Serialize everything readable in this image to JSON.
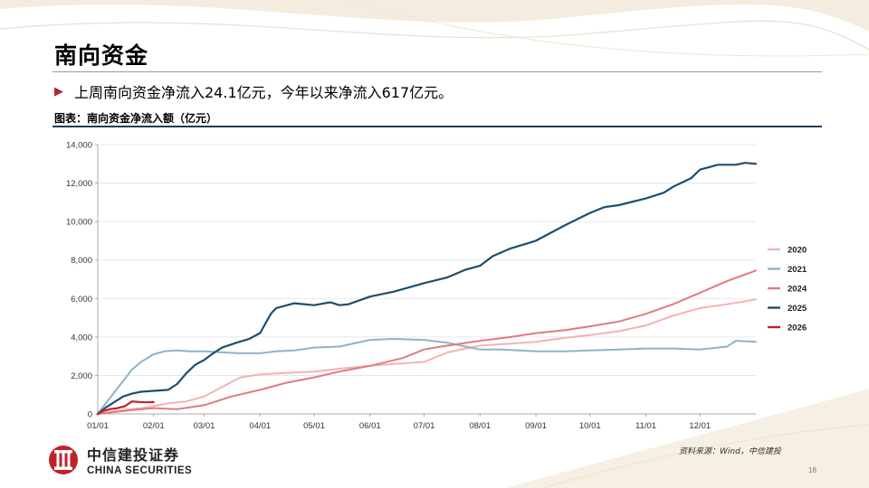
{
  "page": {
    "title": "南向资金",
    "bullet": "上周南向资金净流入24.1亿元，今年以来净流入617亿元。",
    "caption": "图表：南向资金净流入额（亿元）",
    "source": "资料来源：Wind，中信建投",
    "page_number": "18",
    "logo": {
      "name_cn": "中信建投证券",
      "name_en": "CHINA SECURITIES"
    }
  },
  "chart_data": {
    "type": "line",
    "title": "",
    "xlabel": "",
    "ylabel": "",
    "x_ticks": [
      "01/01",
      "02/01",
      "03/01",
      "04/01",
      "05/01",
      "06/01",
      "07/01",
      "08/01",
      "09/01",
      "10/01",
      "11/01",
      "12/01"
    ],
    "x_tick_days": [
      1,
      32,
      60,
      91,
      121,
      152,
      182,
      213,
      244,
      274,
      305,
      335
    ],
    "xlim": [
      1,
      366
    ],
    "ylim": [
      0,
      14000
    ],
    "y_ticks": [
      0,
      2000,
      4000,
      6000,
      8000,
      10000,
      12000,
      14000
    ],
    "y_tick_labels": [
      "0",
      "2,000",
      "4,000",
      "6,000",
      "8,000",
      "10,000",
      "12,000",
      "14,000"
    ],
    "grid": true,
    "legend_position": "right",
    "series": [
      {
        "name": "2020",
        "color": "#f2b3b3",
        "width": 2,
        "x": [
          1,
          15,
          25,
          32,
          40,
          50,
          60,
          70,
          80,
          91,
          100,
          110,
          121,
          135,
          152,
          165,
          182,
          195,
          213,
          230,
          244,
          260,
          274,
          290,
          305,
          320,
          335,
          350,
          366
        ],
        "y": [
          0,
          200,
          300,
          400,
          550,
          650,
          900,
          1400,
          1900,
          2050,
          2100,
          2150,
          2200,
          2350,
          2500,
          2600,
          2700,
          3200,
          3550,
          3650,
          3750,
          3950,
          4100,
          4300,
          4600,
          5100,
          5500,
          5700,
          5950
        ]
      },
      {
        "name": "2021",
        "color": "#8fb2c6",
        "width": 2,
        "x": [
          1,
          5,
          10,
          15,
          20,
          25,
          32,
          38,
          45,
          52,
          60,
          70,
          80,
          91,
          100,
          110,
          121,
          135,
          152,
          165,
          182,
          195,
          205,
          213,
          225,
          244,
          260,
          274,
          290,
          305,
          320,
          335,
          350,
          355,
          366
        ],
        "y": [
          0,
          500,
          1100,
          1700,
          2300,
          2700,
          3100,
          3250,
          3300,
          3250,
          3250,
          3200,
          3150,
          3150,
          3250,
          3300,
          3450,
          3500,
          3850,
          3900,
          3850,
          3700,
          3500,
          3350,
          3350,
          3250,
          3250,
          3300,
          3350,
          3400,
          3400,
          3350,
          3500,
          3800,
          3750
        ]
      },
      {
        "name": "2024",
        "color": "#e07b80",
        "width": 2,
        "x": [
          1,
          20,
          32,
          45,
          60,
          75,
          91,
          105,
          121,
          135,
          152,
          170,
          182,
          195,
          213,
          230,
          244,
          260,
          274,
          290,
          305,
          320,
          335,
          350,
          366
        ],
        "y": [
          0,
          200,
          300,
          250,
          450,
          900,
          1250,
          1600,
          1900,
          2200,
          2500,
          2900,
          3350,
          3550,
          3800,
          4000,
          4200,
          4350,
          4550,
          4800,
          5200,
          5700,
          6300,
          6900,
          7450
        ]
      },
      {
        "name": "2025",
        "color": "#1d4e6e",
        "width": 2.2,
        "x": [
          1,
          5,
          10,
          15,
          20,
          25,
          32,
          40,
          45,
          50,
          55,
          60,
          65,
          70,
          78,
          85,
          91,
          97,
          100,
          110,
          121,
          130,
          135,
          140,
          152,
          165,
          182,
          195,
          205,
          213,
          220,
          230,
          244,
          250,
          260,
          274,
          282,
          290,
          305,
          315,
          320,
          330,
          335,
          345,
          355,
          360,
          366
        ],
        "y": [
          0,
          300,
          600,
          900,
          1050,
          1150,
          1200,
          1250,
          1550,
          2100,
          2550,
          2800,
          3150,
          3450,
          3700,
          3900,
          4200,
          5200,
          5500,
          5750,
          5650,
          5800,
          5650,
          5700,
          6100,
          6350,
          6800,
          7100,
          7500,
          7700,
          8200,
          8600,
          9000,
          9300,
          9800,
          10450,
          10750,
          10850,
          11200,
          11500,
          11800,
          12250,
          12700,
          12950,
          12950,
          13050,
          13000
        ]
      },
      {
        "name": "2026",
        "color": "#c0222a",
        "width": 2.2,
        "x": [
          1,
          4,
          8,
          12,
          16,
          20,
          24,
          28,
          32
        ],
        "y": [
          0,
          150,
          250,
          300,
          400,
          650,
          620,
          600,
          617
        ]
      }
    ]
  }
}
